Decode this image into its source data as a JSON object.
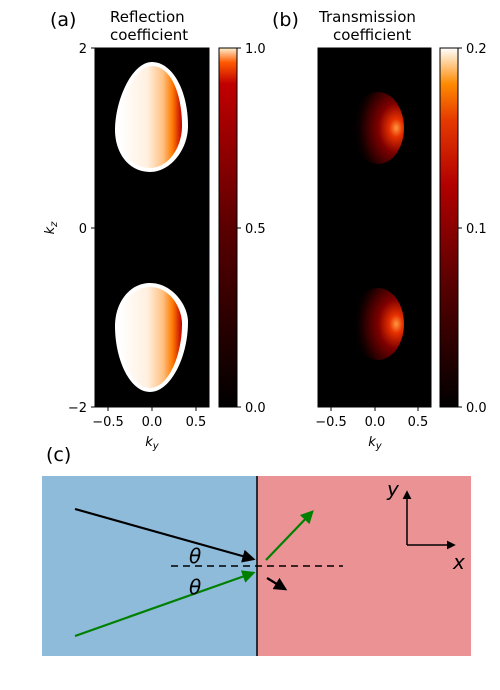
{
  "figure": {
    "panel_a": {
      "label": "(a)",
      "title_line1": "Reflection",
      "title_line2": "coefficient",
      "xlabel": "k_y",
      "ylabel": "k_z",
      "xticks": [
        "−0.5",
        "0.0",
        "0.5"
      ],
      "yticks": [
        "2",
        "0",
        "−2"
      ],
      "colorbar_ticks": [
        "1.0",
        "0.5",
        "0.0"
      ]
    },
    "panel_b": {
      "label": "(b)",
      "title_line1": "Transmission",
      "title_line2": "coefficient",
      "xlabel": "k_y",
      "xticks": [
        "−0.5",
        "0.0",
        "0.5"
      ],
      "colorbar_ticks": [
        "0.2",
        "0.1",
        "0.0"
      ]
    },
    "panel_c": {
      "label": "(c)",
      "theta_upper": "θ",
      "theta_lower": "θ",
      "axis_y": "y",
      "axis_x": "x",
      "colors": {
        "left_medium": "#8fbbdb",
        "right_medium": "#ea9294",
        "reflected_ray": "#000000",
        "transmitted_ray": "#008000"
      }
    }
  },
  "chart_data": [
    {
      "type": "heatmap",
      "title": "Reflection coefficient",
      "xlabel": "k_y",
      "ylabel": "k_z",
      "xlim": [
        -0.65,
        0.65
      ],
      "ylim": [
        -2,
        2
      ],
      "colorbar": {
        "min": 0.0,
        "max": 1.0,
        "ticks": [
          0.0,
          0.5,
          1.0
        ],
        "colormap": "gist_heat"
      },
      "features": [
        {
          "shape": "teardrop",
          "center_ky": 0.0,
          "center_kz": 1.2,
          "value": 1.0
        },
        {
          "shape": "teardrop",
          "center_ky": 0.0,
          "center_kz": -0.8,
          "value": 1.0
        }
      ]
    },
    {
      "type": "heatmap",
      "title": "Transmission coefficient",
      "xlabel": "k_y",
      "xlim": [
        -0.65,
        0.65
      ],
      "ylim": [
        -2,
        2
      ],
      "colorbar": {
        "min": 0.0,
        "max": 0.2,
        "ticks": [
          0.0,
          0.1,
          0.2
        ],
        "colormap": "gist_heat"
      },
      "features": [
        {
          "shape": "crescent",
          "center_ky": 0.3,
          "center_kz": 1.1,
          "value": 0.2
        },
        {
          "shape": "crescent",
          "center_ky": 0.3,
          "center_kz": -1.1,
          "value": 0.2
        }
      ]
    }
  ]
}
